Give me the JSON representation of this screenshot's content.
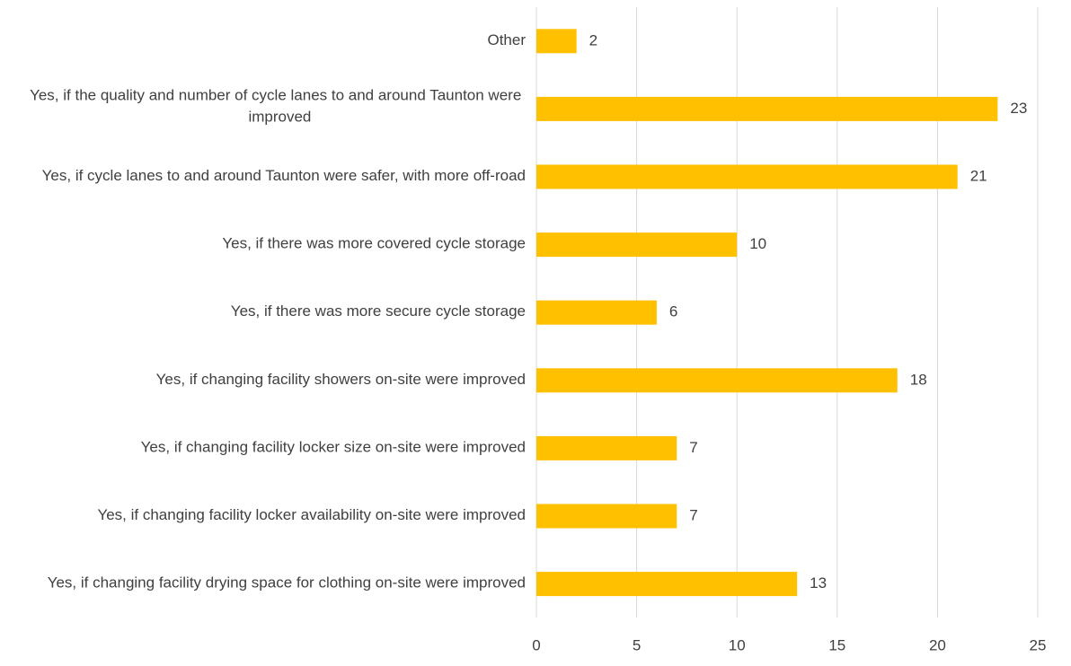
{
  "chart_data": {
    "type": "bar",
    "orientation": "horizontal",
    "categories": [
      "Other",
      "Yes, if the quality and number of cycle lanes to and around Taunton were improved",
      "Yes, if cycle lanes to and around Taunton were safer, with more off-road",
      "Yes, if there was more covered cycle storage",
      "Yes, if there was more secure cycle storage",
      "Yes, if changing facility showers on-site were improved",
      "Yes, if changing facility locker size on-site were improved",
      "Yes, if changing facility locker availability on-site were improved",
      "Yes, if changing facility drying space for clothing on-site were improved"
    ],
    "values": [
      2,
      23,
      21,
      10,
      6,
      18,
      7,
      7,
      13
    ],
    "color": "#ffc000",
    "xlim": [
      0,
      25
    ],
    "xticks": [
      0,
      5,
      10,
      15,
      20,
      25
    ],
    "grid": true
  }
}
